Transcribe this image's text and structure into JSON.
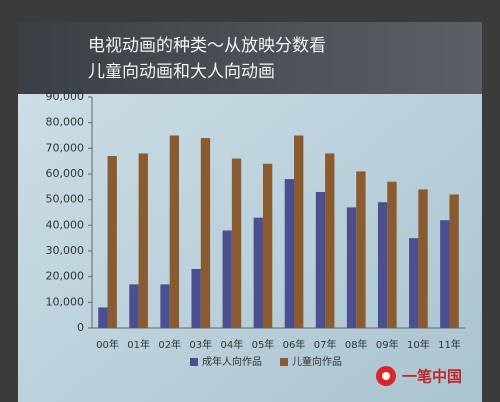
{
  "chart_data": {
    "type": "bar",
    "title": [
      "电视动画的种类～从放映分数看",
      "儿童向动画和大人向动画"
    ],
    "categories": [
      "00年",
      "01年",
      "02年",
      "03年",
      "04年",
      "05年",
      "06年",
      "07年",
      "08年",
      "09年",
      "10年",
      "11年"
    ],
    "series": [
      {
        "name": "成年人向作品",
        "color": "#4b4f8f",
        "values": [
          8000,
          17000,
          17000,
          23000,
          38000,
          43000,
          58000,
          53000,
          47000,
          49000,
          35000,
          42000
        ]
      },
      {
        "name": "儿童向作品",
        "color": "#8a5a30",
        "values": [
          67000,
          68000,
          75000,
          74000,
          66000,
          64000,
          75000,
          68000,
          61000,
          57000,
          54000,
          52000
        ]
      }
    ],
    "ylim": [
      0,
      90000
    ],
    "yticks": [
      0,
      {
        "value": 10000,
        "label": "10,000"
      },
      {
        "value": 20000,
        "label": "20,000"
      },
      {
        "value": 30000,
        "label": "30,000"
      },
      {
        "value": 40000,
        "label": "40,000"
      },
      {
        "value": 50000,
        "label": "50,000"
      },
      {
        "value": 60000,
        "label": "60,000"
      },
      {
        "value": 70000,
        "label": "70,000"
      },
      {
        "value": 80000,
        "label": "80,000"
      },
      {
        "value": 90000,
        "label": "90,000"
      }
    ],
    "legend": "bottom"
  },
  "watermark": "一笔中国"
}
